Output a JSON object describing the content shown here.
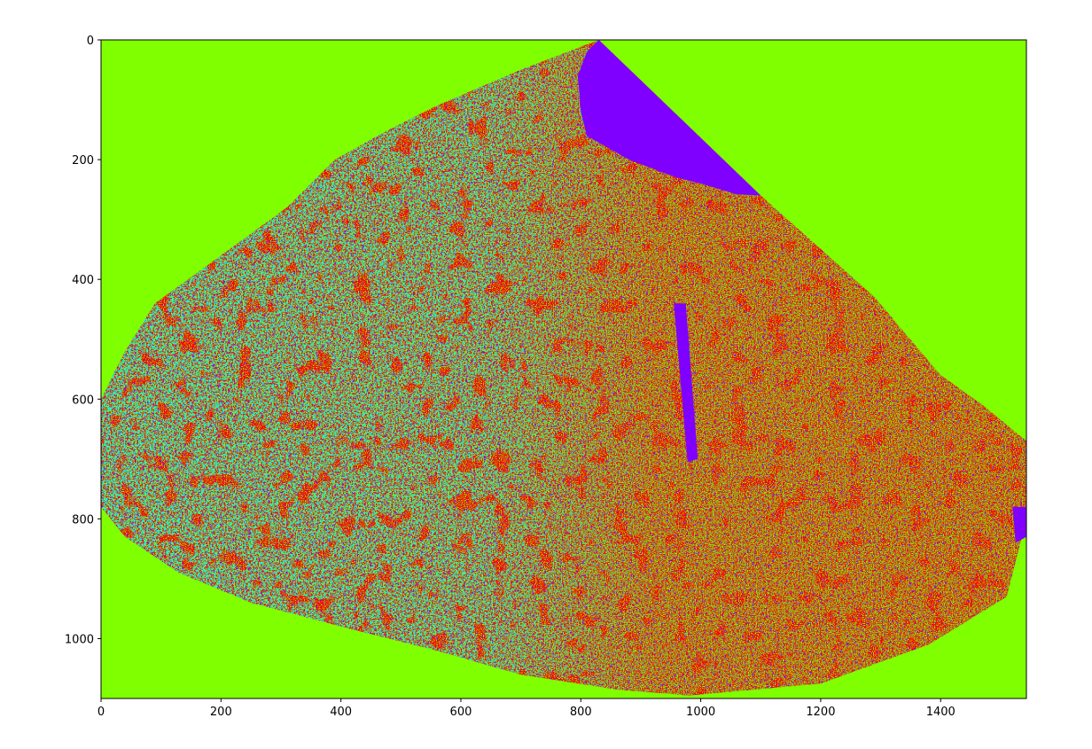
{
  "chart_data": {
    "type": "heatmap",
    "title": "",
    "xlabel": "",
    "ylabel": "",
    "xlim": [
      0,
      1543
    ],
    "ylim": [
      1100,
      0
    ],
    "y_inverted": true,
    "x_ticks": [
      0,
      200,
      400,
      600,
      800,
      1000,
      1200,
      1400
    ],
    "y_ticks": [
      0,
      200,
      400,
      600,
      800,
      1000
    ],
    "x_tick_labels": [
      "0",
      "200",
      "400",
      "600",
      "800",
      "1000",
      "1200",
      "1400"
    ],
    "y_tick_labels": [
      "0",
      "200",
      "400",
      "600",
      "800",
      "1000"
    ],
    "grid": false,
    "legend": "none",
    "colors": {
      "background_class": "#80ff00",
      "water_class": "#7f00ff",
      "class_red": "#ff0000",
      "class_cyan": "#00ffff",
      "class_magenta": "#ff00c0"
    },
    "region_outline": [
      [
        830,
        0
      ],
      [
        1100,
        260
      ],
      [
        1290,
        430
      ],
      [
        1400,
        560
      ],
      [
        1470,
        610
      ],
      [
        1543,
        670
      ],
      [
        1543,
        800
      ],
      [
        1510,
        930
      ],
      [
        1380,
        1010
      ],
      [
        1200,
        1075
      ],
      [
        980,
        1095
      ],
      [
        860,
        1085
      ],
      [
        700,
        1060
      ],
      [
        560,
        1020
      ],
      [
        420,
        985
      ],
      [
        250,
        940
      ],
      [
        130,
        890
      ],
      [
        40,
        830
      ],
      [
        0,
        780
      ],
      [
        0,
        600
      ],
      [
        40,
        520
      ],
      [
        90,
        440
      ],
      [
        200,
        360
      ],
      [
        310,
        280
      ],
      [
        390,
        200
      ],
      [
        480,
        150
      ],
      [
        560,
        110
      ],
      [
        700,
        50
      ]
    ],
    "water_polygons": [
      [
        [
          830,
          0
        ],
        [
          1100,
          260
        ],
        [
          1060,
          258
        ],
        [
          1000,
          240
        ],
        [
          960,
          230
        ],
        [
          880,
          200
        ],
        [
          810,
          160
        ],
        [
          800,
          120
        ],
        [
          795,
          60
        ],
        [
          810,
          20
        ]
      ],
      [
        [
          1520,
          780
        ],
        [
          1543,
          780
        ],
        [
          1543,
          830
        ],
        [
          1525,
          840
        ]
      ],
      [
        [
          955,
          440
        ],
        [
          975,
          440
        ],
        [
          995,
          700
        ],
        [
          978,
          705
        ]
      ]
    ]
  }
}
